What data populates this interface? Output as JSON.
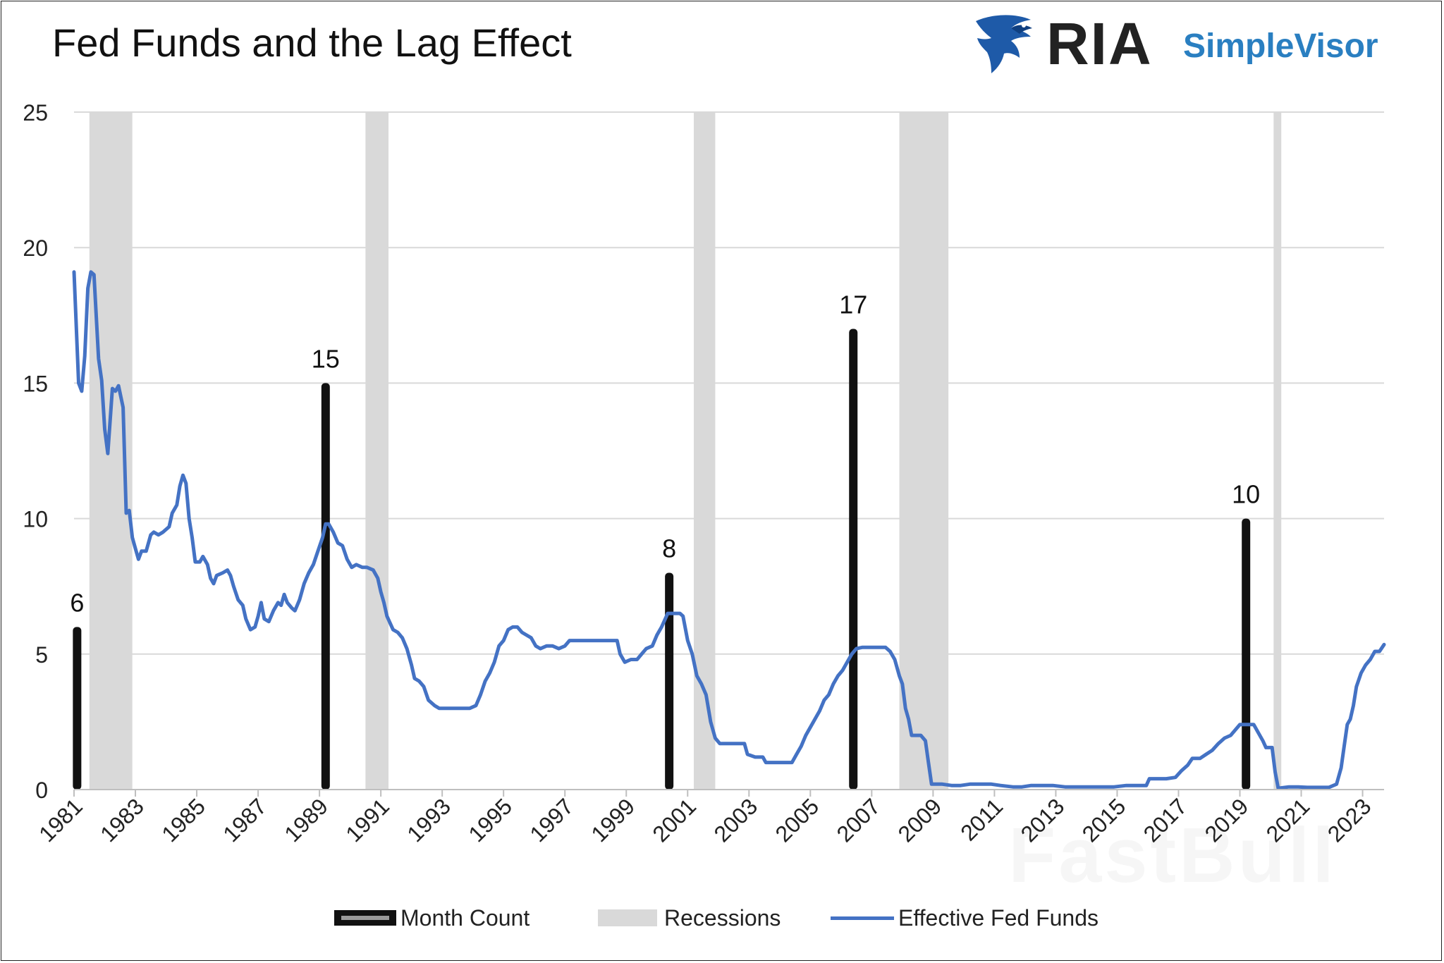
{
  "header": {
    "title": "Fed Funds and the Lag Effect",
    "logo_text_primary": "RIA",
    "logo_text_secondary": "SimpleVisor"
  },
  "colors": {
    "line": "#4472c4",
    "bars": "#111111",
    "recessions": "#d9d9d9",
    "logo_blue": "#2a7fc1",
    "grid": "#d9d9d9"
  },
  "watermark": "FastBull",
  "chart_data": {
    "type": "bar+line",
    "title": "Fed Funds and the Lag Effect",
    "xlabel": "",
    "ylabel": "",
    "xlim": [
      1981.0,
      2023.7
    ],
    "ylim": [
      0,
      25
    ],
    "yticks": [
      0,
      5,
      10,
      15,
      20,
      25
    ],
    "xticks": [
      "1981",
      "1983",
      "1985",
      "1987",
      "1989",
      "1991",
      "1993",
      "1995",
      "1997",
      "1999",
      "2001",
      "2003",
      "2005",
      "2007",
      "2009",
      "2011",
      "2013",
      "2015",
      "2017",
      "2019",
      "2021",
      "2023"
    ],
    "grid": true,
    "legend_position": "bottom",
    "legend": [
      "Month Count",
      "Recessions",
      "Effective Fed Funds"
    ],
    "series": [
      {
        "name": "Month Count",
        "type": "bar",
        "points": [
          {
            "x": 1981.1,
            "value": 6
          },
          {
            "x": 1989.2,
            "value": 15
          },
          {
            "x": 2000.4,
            "value": 8
          },
          {
            "x": 2006.4,
            "value": 17
          },
          {
            "x": 2019.2,
            "value": 10
          }
        ]
      },
      {
        "name": "Recessions",
        "type": "band",
        "ranges": [
          [
            1981.5,
            1982.9
          ],
          [
            1990.5,
            1991.25
          ],
          [
            2001.2,
            2001.9
          ],
          [
            2007.9,
            2009.5
          ],
          [
            2020.1,
            2020.35
          ]
        ]
      },
      {
        "name": "Effective Fed Funds",
        "type": "line",
        "points": [
          [
            1981.0,
            19.1
          ],
          [
            1981.15,
            15.0
          ],
          [
            1981.25,
            14.7
          ],
          [
            1981.35,
            16.0
          ],
          [
            1981.45,
            18.5
          ],
          [
            1981.55,
            19.1
          ],
          [
            1981.65,
            19.0
          ],
          [
            1981.8,
            15.9
          ],
          [
            1981.9,
            15.1
          ],
          [
            1982.0,
            13.3
          ],
          [
            1982.1,
            12.4
          ],
          [
            1982.25,
            14.8
          ],
          [
            1982.35,
            14.7
          ],
          [
            1982.45,
            14.9
          ],
          [
            1982.6,
            14.1
          ],
          [
            1982.7,
            10.2
          ],
          [
            1982.8,
            10.3
          ],
          [
            1982.9,
            9.3
          ],
          [
            1983.0,
            8.9
          ],
          [
            1983.1,
            8.5
          ],
          [
            1983.2,
            8.8
          ],
          [
            1983.35,
            8.8
          ],
          [
            1983.5,
            9.4
          ],
          [
            1983.6,
            9.5
          ],
          [
            1983.75,
            9.4
          ],
          [
            1983.9,
            9.5
          ],
          [
            1984.1,
            9.7
          ],
          [
            1984.2,
            10.2
          ],
          [
            1984.35,
            10.5
          ],
          [
            1984.45,
            11.2
          ],
          [
            1984.55,
            11.6
          ],
          [
            1984.65,
            11.3
          ],
          [
            1984.75,
            10.0
          ],
          [
            1984.85,
            9.3
          ],
          [
            1984.95,
            8.4
          ],
          [
            1985.1,
            8.4
          ],
          [
            1985.2,
            8.6
          ],
          [
            1985.35,
            8.3
          ],
          [
            1985.45,
            7.8
          ],
          [
            1985.55,
            7.6
          ],
          [
            1985.65,
            7.9
          ],
          [
            1985.85,
            8.0
          ],
          [
            1986.0,
            8.1
          ],
          [
            1986.1,
            7.9
          ],
          [
            1986.2,
            7.5
          ],
          [
            1986.35,
            7.0
          ],
          [
            1986.5,
            6.8
          ],
          [
            1986.6,
            6.3
          ],
          [
            1986.75,
            5.9
          ],
          [
            1986.9,
            6.0
          ],
          [
            1987.0,
            6.4
          ],
          [
            1987.1,
            6.9
          ],
          [
            1987.2,
            6.3
          ],
          [
            1987.35,
            6.2
          ],
          [
            1987.5,
            6.6
          ],
          [
            1987.65,
            6.9
          ],
          [
            1987.75,
            6.8
          ],
          [
            1987.85,
            7.2
          ],
          [
            1987.95,
            6.9
          ],
          [
            1988.1,
            6.7
          ],
          [
            1988.2,
            6.6
          ],
          [
            1988.35,
            7.0
          ],
          [
            1988.5,
            7.6
          ],
          [
            1988.65,
            8.0
          ],
          [
            1988.8,
            8.3
          ],
          [
            1988.95,
            8.8
          ],
          [
            1989.1,
            9.3
          ],
          [
            1989.2,
            9.8
          ],
          [
            1989.3,
            9.8
          ],
          [
            1989.45,
            9.5
          ],
          [
            1989.6,
            9.1
          ],
          [
            1989.75,
            9.0
          ],
          [
            1989.9,
            8.5
          ],
          [
            1990.05,
            8.2
          ],
          [
            1990.2,
            8.3
          ],
          [
            1990.4,
            8.2
          ],
          [
            1990.55,
            8.2
          ],
          [
            1990.75,
            8.1
          ],
          [
            1990.9,
            7.8
          ],
          [
            1991.0,
            7.3
          ],
          [
            1991.1,
            6.9
          ],
          [
            1991.2,
            6.4
          ],
          [
            1991.4,
            5.9
          ],
          [
            1991.55,
            5.8
          ],
          [
            1991.7,
            5.6
          ],
          [
            1991.85,
            5.2
          ],
          [
            1992.0,
            4.6
          ],
          [
            1992.1,
            4.1
          ],
          [
            1992.25,
            4.0
          ],
          [
            1992.4,
            3.8
          ],
          [
            1992.55,
            3.3
          ],
          [
            1992.75,
            3.1
          ],
          [
            1992.9,
            3.0
          ],
          [
            1993.1,
            3.0
          ],
          [
            1993.3,
            3.0
          ],
          [
            1993.5,
            3.0
          ],
          [
            1993.7,
            3.0
          ],
          [
            1993.9,
            3.0
          ],
          [
            1994.1,
            3.1
          ],
          [
            1994.25,
            3.5
          ],
          [
            1994.4,
            4.0
          ],
          [
            1994.55,
            4.3
          ],
          [
            1994.7,
            4.7
          ],
          [
            1994.85,
            5.3
          ],
          [
            1995.0,
            5.5
          ],
          [
            1995.15,
            5.9
          ],
          [
            1995.3,
            6.0
          ],
          [
            1995.45,
            6.0
          ],
          [
            1995.6,
            5.8
          ],
          [
            1995.75,
            5.7
          ],
          [
            1995.9,
            5.6
          ],
          [
            1996.05,
            5.3
          ],
          [
            1996.2,
            5.2
          ],
          [
            1996.4,
            5.3
          ],
          [
            1996.6,
            5.3
          ],
          [
            1996.8,
            5.2
          ],
          [
            1997.0,
            5.3
          ],
          [
            1997.15,
            5.5
          ],
          [
            1997.35,
            5.5
          ],
          [
            1997.55,
            5.5
          ],
          [
            1997.75,
            5.5
          ],
          [
            1997.95,
            5.5
          ],
          [
            1998.15,
            5.5
          ],
          [
            1998.35,
            5.5
          ],
          [
            1998.55,
            5.5
          ],
          [
            1998.7,
            5.5
          ],
          [
            1998.8,
            5.0
          ],
          [
            1998.95,
            4.7
          ],
          [
            1999.15,
            4.8
          ],
          [
            1999.35,
            4.8
          ],
          [
            1999.5,
            5.0
          ],
          [
            1999.65,
            5.2
          ],
          [
            1999.85,
            5.3
          ],
          [
            2000.0,
            5.7
          ],
          [
            2000.15,
            6.0
          ],
          [
            2000.35,
            6.5
          ],
          [
            2000.55,
            6.5
          ],
          [
            2000.75,
            6.5
          ],
          [
            2000.85,
            6.4
          ],
          [
            2001.0,
            5.5
          ],
          [
            2001.15,
            5.0
          ],
          [
            2001.3,
            4.2
          ],
          [
            2001.45,
            3.9
          ],
          [
            2001.6,
            3.5
          ],
          [
            2001.75,
            2.5
          ],
          [
            2001.9,
            1.9
          ],
          [
            2002.05,
            1.7
          ],
          [
            2002.3,
            1.7
          ],
          [
            2002.6,
            1.7
          ],
          [
            2002.85,
            1.7
          ],
          [
            2002.95,
            1.3
          ],
          [
            2003.2,
            1.2
          ],
          [
            2003.45,
            1.2
          ],
          [
            2003.55,
            1.0
          ],
          [
            2003.8,
            1.0
          ],
          [
            2004.1,
            1.0
          ],
          [
            2004.4,
            1.0
          ],
          [
            2004.55,
            1.3
          ],
          [
            2004.7,
            1.6
          ],
          [
            2004.85,
            2.0
          ],
          [
            2005.0,
            2.3
          ],
          [
            2005.15,
            2.6
          ],
          [
            2005.3,
            2.9
          ],
          [
            2005.45,
            3.3
          ],
          [
            2005.6,
            3.5
          ],
          [
            2005.75,
            3.9
          ],
          [
            2005.9,
            4.2
          ],
          [
            2006.05,
            4.4
          ],
          [
            2006.2,
            4.7
          ],
          [
            2006.35,
            5.0
          ],
          [
            2006.5,
            5.2
          ],
          [
            2006.7,
            5.25
          ],
          [
            2006.95,
            5.25
          ],
          [
            2007.2,
            5.25
          ],
          [
            2007.45,
            5.25
          ],
          [
            2007.6,
            5.1
          ],
          [
            2007.75,
            4.8
          ],
          [
            2007.9,
            4.2
          ],
          [
            2008.0,
            3.9
          ],
          [
            2008.1,
            3.0
          ],
          [
            2008.2,
            2.6
          ],
          [
            2008.3,
            2.0
          ],
          [
            2008.45,
            2.0
          ],
          [
            2008.6,
            2.0
          ],
          [
            2008.75,
            1.8
          ],
          [
            2008.85,
            1.0
          ],
          [
            2008.95,
            0.2
          ],
          [
            2009.1,
            0.2
          ],
          [
            2009.3,
            0.2
          ],
          [
            2009.6,
            0.15
          ],
          [
            2009.9,
            0.15
          ],
          [
            2010.2,
            0.2
          ],
          [
            2010.6,
            0.2
          ],
          [
            2010.9,
            0.2
          ],
          [
            2011.2,
            0.15
          ],
          [
            2011.6,
            0.1
          ],
          [
            2011.9,
            0.1
          ],
          [
            2012.2,
            0.15
          ],
          [
            2012.6,
            0.15
          ],
          [
            2012.9,
            0.15
          ],
          [
            2013.3,
            0.1
          ],
          [
            2013.7,
            0.1
          ],
          [
            2014.1,
            0.1
          ],
          [
            2014.5,
            0.1
          ],
          [
            2014.9,
            0.1
          ],
          [
            2015.3,
            0.15
          ],
          [
            2015.7,
            0.15
          ],
          [
            2015.95,
            0.15
          ],
          [
            2016.05,
            0.4
          ],
          [
            2016.3,
            0.4
          ],
          [
            2016.6,
            0.4
          ],
          [
            2016.9,
            0.45
          ],
          [
            2017.1,
            0.7
          ],
          [
            2017.3,
            0.9
          ],
          [
            2017.45,
            1.15
          ],
          [
            2017.7,
            1.15
          ],
          [
            2017.9,
            1.3
          ],
          [
            2018.1,
            1.45
          ],
          [
            2018.3,
            1.7
          ],
          [
            2018.5,
            1.9
          ],
          [
            2018.7,
            2.0
          ],
          [
            2018.85,
            2.2
          ],
          [
            2019.0,
            2.4
          ],
          [
            2019.25,
            2.4
          ],
          [
            2019.45,
            2.4
          ],
          [
            2019.6,
            2.1
          ],
          [
            2019.75,
            1.8
          ],
          [
            2019.85,
            1.55
          ],
          [
            2020.05,
            1.55
          ],
          [
            2020.15,
            0.65
          ],
          [
            2020.25,
            0.05
          ],
          [
            2020.6,
            0.1
          ],
          [
            2020.9,
            0.1
          ],
          [
            2021.2,
            0.08
          ],
          [
            2021.6,
            0.08
          ],
          [
            2021.9,
            0.08
          ],
          [
            2022.15,
            0.2
          ],
          [
            2022.3,
            0.8
          ],
          [
            2022.4,
            1.6
          ],
          [
            2022.5,
            2.4
          ],
          [
            2022.6,
            2.6
          ],
          [
            2022.7,
            3.1
          ],
          [
            2022.8,
            3.8
          ],
          [
            2022.95,
            4.3
          ],
          [
            2023.1,
            4.6
          ],
          [
            2023.25,
            4.8
          ],
          [
            2023.4,
            5.1
          ],
          [
            2023.55,
            5.1
          ],
          [
            2023.7,
            5.35
          ]
        ]
      }
    ]
  }
}
